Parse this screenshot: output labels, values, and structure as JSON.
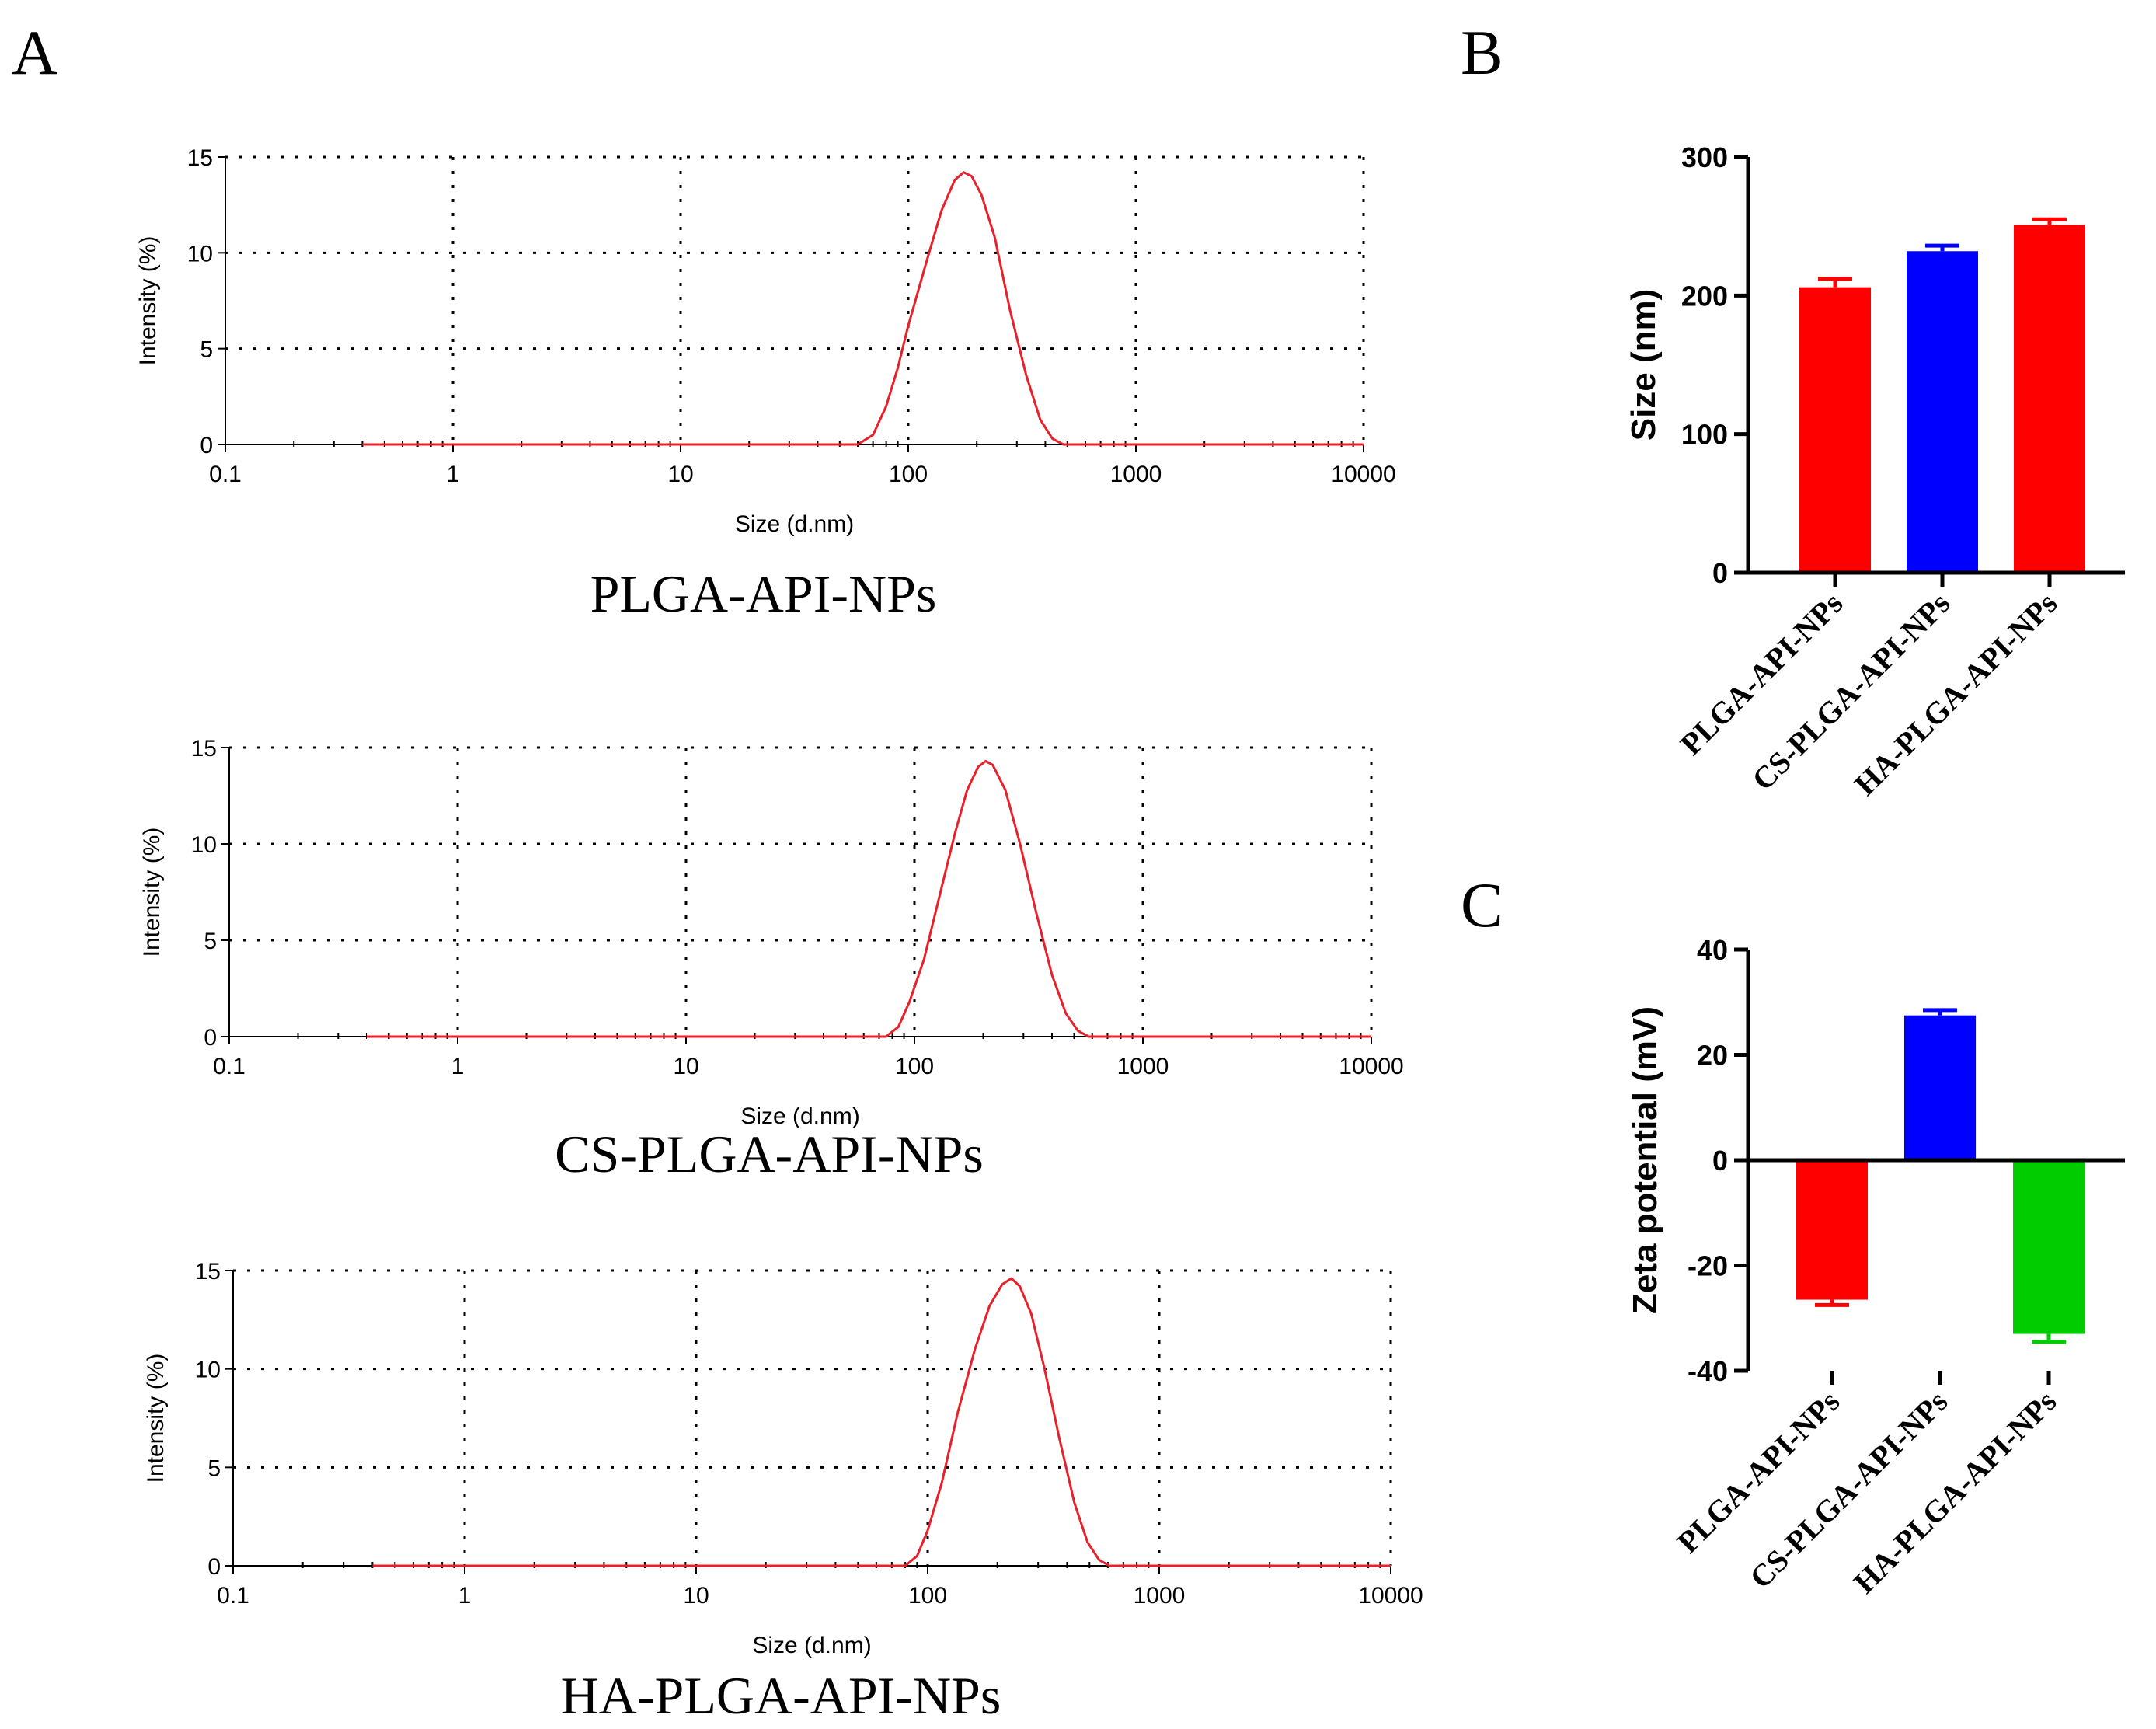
{
  "panels": {
    "a_letter": "A",
    "b_letter": "B",
    "c_letter": "C"
  },
  "colors": {
    "curve": "#e8202a",
    "red": "#ff0000",
    "blue": "#0000ff",
    "green": "#00cc00"
  },
  "chart_data": [
    {
      "type": "line",
      "caption": "PLGA-API-NPs",
      "xlabel": "Size (d.nm)",
      "ylabel": "Intensity (%)",
      "xscale": "log",
      "xlim": [
        0.1,
        10000
      ],
      "ylim": [
        0,
        15
      ],
      "xticks": [
        "0.1",
        "1",
        "10",
        "100",
        "1000",
        "10000"
      ],
      "yticks": [
        "0",
        "5",
        "10",
        "15"
      ],
      "grid": true,
      "series": [
        {
          "x": [
            0.4,
            60,
            70,
            80,
            90,
            100,
            120,
            140,
            160,
            175,
            190,
            210,
            240,
            280,
            330,
            380,
            430,
            480,
            10000
          ],
          "y": [
            0,
            0,
            0.5,
            2.0,
            4.0,
            6.2,
            9.5,
            12.2,
            13.8,
            14.2,
            14.0,
            13.0,
            10.8,
            7.0,
            3.6,
            1.3,
            0.3,
            0,
            0
          ]
        }
      ]
    },
    {
      "type": "line",
      "caption": "CS-PLGA-API-NPs",
      "xlabel": "Size (d.nm)",
      "ylabel": "Intensity (%)",
      "xscale": "log",
      "xlim": [
        0.1,
        10000
      ],
      "ylim": [
        0,
        15
      ],
      "xticks": [
        "0.1",
        "1",
        "10",
        "100",
        "1000",
        "10000"
      ],
      "yticks": [
        "0",
        "5",
        "10",
        "15"
      ],
      "grid": true,
      "series": [
        {
          "x": [
            0.4,
            75,
            85,
            95,
            110,
            130,
            150,
            170,
            190,
            205,
            220,
            250,
            290,
            340,
            400,
            460,
            520,
            580,
            10000
          ],
          "y": [
            0,
            0,
            0.5,
            1.8,
            4.0,
            7.5,
            10.5,
            12.8,
            14.0,
            14.3,
            14.1,
            12.8,
            10.0,
            6.5,
            3.2,
            1.2,
            0.3,
            0,
            0
          ]
        }
      ]
    },
    {
      "type": "line",
      "caption": "HA-PLGA-API-NPs",
      "xlabel": "Size (d.nm)",
      "ylabel": "Intensity (%)",
      "xscale": "log",
      "xlim": [
        0.1,
        10000
      ],
      "ylim": [
        0,
        15
      ],
      "xticks": [
        "0.1",
        "1",
        "10",
        "100",
        "1000",
        "10000"
      ],
      "yticks": [
        "0",
        "5",
        "10",
        "15"
      ],
      "grid": true,
      "series": [
        {
          "x": [
            0.4,
            80,
            90,
            100,
            115,
            135,
            160,
            185,
            210,
            230,
            250,
            280,
            320,
            370,
            430,
            490,
            550,
            610,
            10000
          ],
          "y": [
            0,
            0,
            0.5,
            1.8,
            4.2,
            7.8,
            11.0,
            13.2,
            14.3,
            14.6,
            14.2,
            12.8,
            10.0,
            6.5,
            3.2,
            1.2,
            0.3,
            0,
            0
          ]
        }
      ]
    },
    {
      "type": "bar",
      "categories": [
        "PLGA-API-NPs",
        "CS-PLGA-API-NPs",
        "HA-PLGA-API-NPs"
      ],
      "values": [
        206,
        232,
        251
      ],
      "errors": [
        6,
        4,
        4
      ],
      "colors": [
        "#ff0000",
        "#0000ff",
        "#ff0000"
      ],
      "ylabel": "Size (nm)",
      "ylim": [
        0,
        300
      ],
      "yticks": [
        "0",
        "100",
        "200",
        "300"
      ]
    },
    {
      "type": "bar",
      "categories": [
        "PLGA-API-NPs",
        "CS-PLGA-API-NPs",
        "HA-PLGA-API-NPs"
      ],
      "values": [
        -26.5,
        27.5,
        -33
      ],
      "errors": [
        1,
        1,
        1.5
      ],
      "colors": [
        "#ff0000",
        "#0000ff",
        "#00cc00"
      ],
      "ylabel": "Zeta potential (mV)",
      "ylim": [
        -40,
        40
      ],
      "yticks": [
        "-40",
        "-20",
        "0",
        "20",
        "40"
      ]
    }
  ]
}
